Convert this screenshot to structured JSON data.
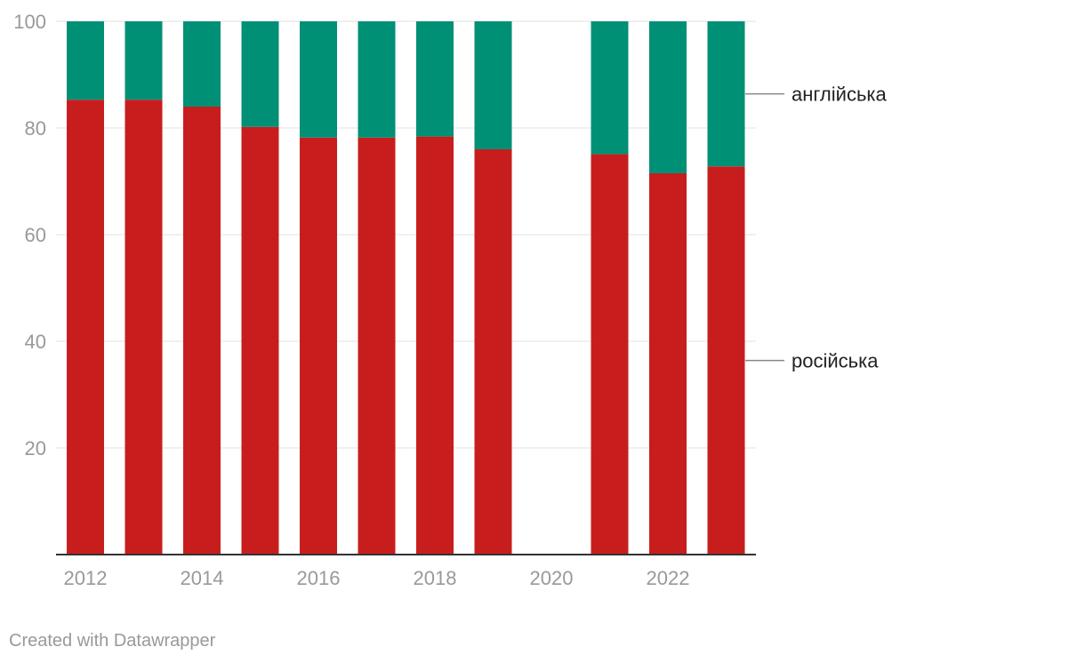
{
  "chart_data": {
    "type": "bar",
    "stacked": true,
    "categories": [
      "2012",
      "2013",
      "2014",
      "2015",
      "2016",
      "2017",
      "2018",
      "2019",
      "2020",
      "2021",
      "2022",
      "2023"
    ],
    "x_tick_labels": [
      "2012",
      "2014",
      "2016",
      "2018",
      "2020",
      "2022"
    ],
    "y_ticks": [
      20,
      40,
      60,
      80,
      100
    ],
    "ylim": [
      0,
      100
    ],
    "grid": true,
    "series": [
      {
        "name": "російська",
        "color": "#c71e1d",
        "values": [
          85.3,
          85.3,
          84,
          80.2,
          78.2,
          78.2,
          78.4,
          76,
          null,
          75.1,
          71.5,
          72.8
        ]
      },
      {
        "name": "англійська",
        "color": "#009076",
        "values": [
          14.7,
          14.7,
          16,
          19.8,
          21.8,
          21.8,
          21.6,
          24,
          null,
          24.9,
          28.5,
          27.2
        ]
      }
    ],
    "legend_placement": "right, inline"
  },
  "footer": {
    "credit": "Created with Datawrapper"
  }
}
